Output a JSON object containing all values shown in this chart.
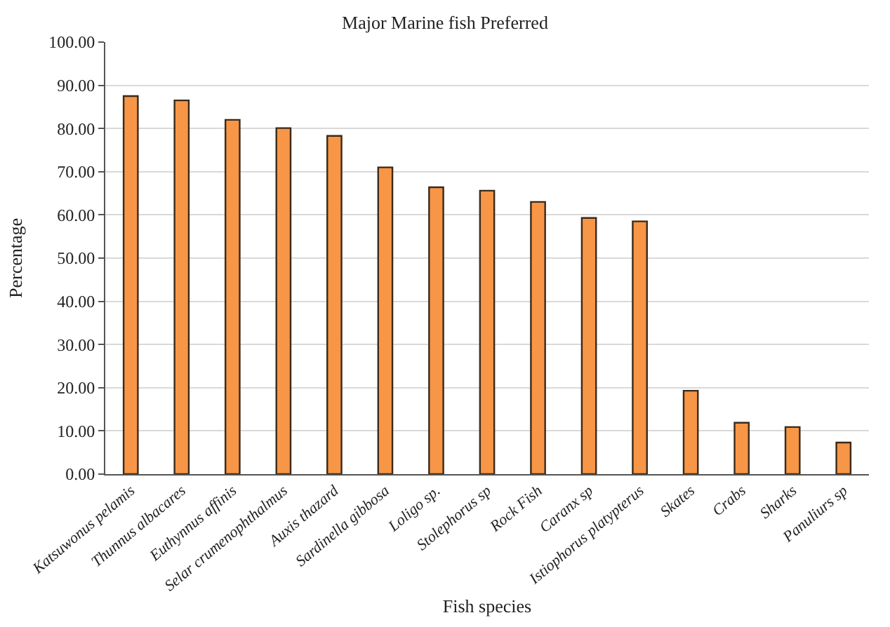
{
  "chart_data": {
    "type": "bar",
    "title": "Major Marine fish Preferred",
    "xlabel": "Fish species",
    "ylabel": "Percentage",
    "categories": [
      "Katsuwonus pelamis",
      "Thunnus albacares",
      "Euthynnus affinis",
      "Selar crumenophthalmus",
      "Auxis thazard",
      "Sardinella gibbosa",
      "Loligo sp.",
      "Stolephorus sp",
      "Rock Fish",
      "Caranx sp",
      "Istiophorus platypterus",
      "Skates",
      "Crabs",
      "Sharks",
      "Panuliurs sp"
    ],
    "values": [
      87.5,
      86.5,
      82.0,
      80.1,
      78.3,
      71.0,
      66.4,
      65.6,
      63.0,
      59.3,
      58.5,
      19.3,
      11.9,
      10.9,
      7.3
    ],
    "color": "#f79646",
    "ylim": [
      0,
      100
    ],
    "yticks": [
      {
        "value": 0,
        "label": "0.00"
      },
      {
        "value": 10,
        "label": "10.00"
      },
      {
        "value": 20,
        "label": "20.00"
      },
      {
        "value": 30,
        "label": "30.00"
      },
      {
        "value": 40,
        "label": "40.00"
      },
      {
        "value": 50,
        "label": "50.00"
      },
      {
        "value": 60,
        "label": "60.00"
      },
      {
        "value": 70,
        "label": "70.00"
      },
      {
        "value": 80,
        "label": "80.00"
      },
      {
        "value": 90,
        "label": "90.00"
      },
      {
        "value": 100,
        "label": "100.00"
      }
    ],
    "grid": "y",
    "legend": false
  }
}
